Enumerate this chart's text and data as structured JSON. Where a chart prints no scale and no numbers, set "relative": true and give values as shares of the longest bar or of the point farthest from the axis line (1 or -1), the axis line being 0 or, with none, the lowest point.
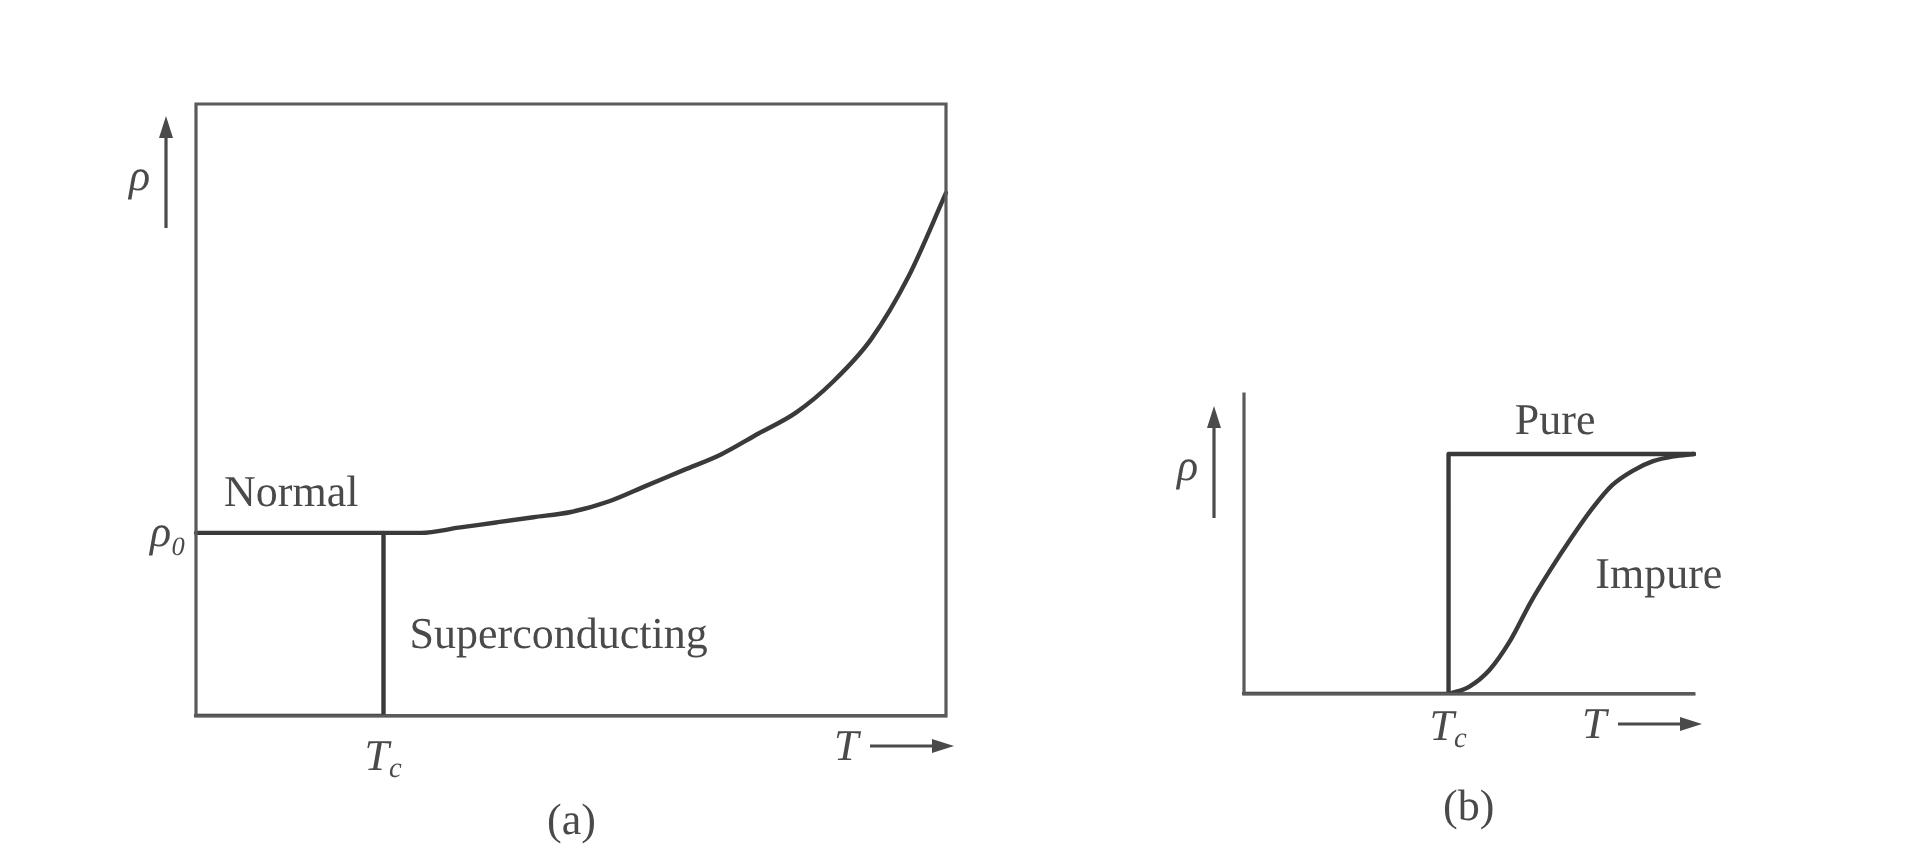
{
  "chart_data": [
    {
      "type": "line",
      "title": "(a)",
      "xlabel": "T",
      "ylabel": "ρ",
      "relative": true,
      "categories": [
        null,
        null,
        null,
        null,
        null,
        null,
        null,
        null,
        null,
        null,
        null,
        null,
        null,
        null,
        null,
        null,
        null,
        null,
        null,
        null,
        null
      ],
      "series": [
        {
          "name": "Normal",
          "type": "line",
          "color": "#3a3a3a",
          "values": [
            0.35,
            0.35,
            0.35,
            0.35,
            0.35,
            0.35,
            0.35,
            0.36,
            0.37,
            0.38,
            0.39,
            0.41,
            0.44,
            0.47,
            0.5,
            0.54,
            0.58,
            0.64,
            0.72,
            0.84,
            1
          ]
        },
        {
          "name": "Superconducting",
          "type": "step",
          "color": "#3a3a3a",
          "values": [
            0,
            0,
            0,
            0,
            0,
            0.35,
            null,
            null,
            null,
            null,
            null,
            null,
            null,
            null,
            null,
            null,
            null,
            null,
            null,
            null,
            null
          ]
        }
      ],
      "annotations": [
        "T$_{c}$",
        "ρ₀"
      ]
    },
    {
      "type": "line",
      "title": "(b)",
      "xlabel": "T",
      "ylabel": "ρ",
      "relative": true,
      "categories": [
        null,
        null,
        null,
        null,
        null,
        null,
        null,
        null,
        null,
        null,
        null,
        null,
        null,
        null,
        null,
        null,
        null,
        null,
        null,
        null,
        null,
        null,
        null
      ],
      "series": [
        {
          "name": "Pure",
          "type": "step",
          "color": "#3a3a3a",
          "values": [
            0,
            0,
            0,
            0,
            0,
            0,
            0,
            0,
            0,
            0,
            1,
            1,
            1,
            1,
            1,
            1,
            1,
            1,
            1,
            1,
            1,
            1,
            1
          ]
        },
        {
          "name": "Impure",
          "type": "line",
          "color": "#3a3a3a",
          "values": [
            null,
            null,
            null,
            null,
            null,
            null,
            null,
            null,
            null,
            null,
            0,
            0.03,
            0.1,
            0.22,
            0.38,
            0.52,
            0.65,
            0.77,
            0.87,
            0.93,
            0.97,
            0.99,
            1
          ]
        }
      ],
      "annotations": [
        "T$_{c}$"
      ]
    }
  ]
}
